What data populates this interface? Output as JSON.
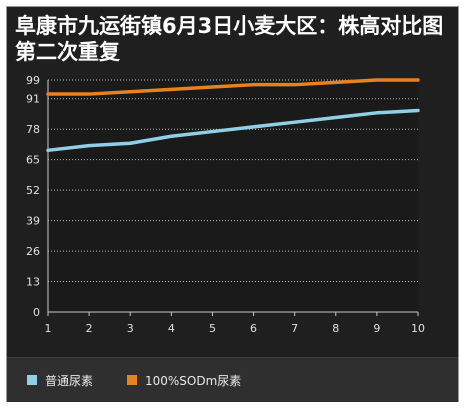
{
  "title": "阜康市九运街镇6月3日小麦大区：株高对比图第二次重复",
  "chart_data": {
    "type": "line",
    "title": "阜康市九运街镇6月3日小麦大区：株高对比图第二次重复",
    "xlabel": "",
    "ylabel": "",
    "x": [
      1,
      2,
      3,
      4,
      5,
      6,
      7,
      8,
      9,
      10
    ],
    "x_tick_labels": [
      "1",
      "2",
      "3",
      "4",
      "5",
      "6",
      "7",
      "8",
      "9",
      "10"
    ],
    "y_ticks": [
      0,
      13,
      26,
      39,
      52,
      65,
      78,
      91,
      99
    ],
    "y_tick_labels": [
      "0",
      "13",
      "26",
      "39",
      "52",
      "65",
      "78",
      "91",
      "99"
    ],
    "ylim": [
      0,
      99
    ],
    "grid": true,
    "legend_position": "bottom",
    "series": [
      {
        "name": "普通尿素",
        "color": "#8fd0e8",
        "values": [
          69,
          71,
          72,
          75,
          77,
          79,
          81,
          83,
          85,
          86
        ]
      },
      {
        "name": "100%SODm尿素",
        "color": "#e8821e",
        "values": [
          93,
          93,
          94,
          95,
          96,
          97,
          97,
          98,
          99,
          99
        ]
      }
    ]
  }
}
